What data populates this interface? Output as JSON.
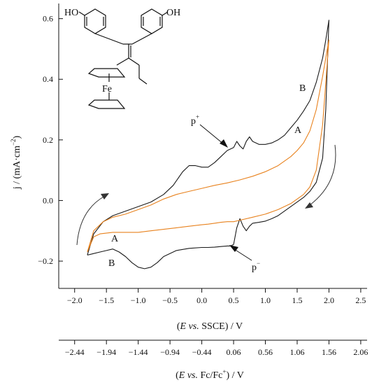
{
  "chart_data": {
    "type": "line",
    "title": "",
    "ylabel_parts": [
      "j / (mA·cm",
      "−2",
      ")"
    ],
    "xlabel_parts": [
      "(",
      "E",
      " ",
      "vs.",
      " SSCE) / V"
    ],
    "x2label_parts": [
      "(",
      "E",
      " ",
      "vs.",
      " Fc/Fc",
      "+",
      ") / V"
    ],
    "xlim": [
      -2.25,
      2.6
    ],
    "ylim": [
      -0.29,
      0.65
    ],
    "x_ticks": [
      -2.0,
      -1.5,
      -1.0,
      -0.5,
      0.0,
      0.5,
      1.0,
      1.5,
      2.0,
      2.5
    ],
    "x_tick_labels": [
      "−2.0",
      "−1.5",
      "−1.0",
      "−0.5",
      "0.0",
      "0.5",
      "1.0",
      "1.5",
      "2.0",
      "2.5"
    ],
    "y_ticks": [
      -0.2,
      0.0,
      0.2,
      0.4,
      0.6
    ],
    "y_tick_labels": [
      "−0.2",
      "0.0",
      "0.2",
      "0.4",
      "0.6"
    ],
    "x2_ticks": [
      -2.44,
      -1.94,
      -1.44,
      -0.94,
      -0.44,
      0.06,
      0.56,
      1.06,
      1.56,
      2.06
    ],
    "x2_tick_labels": [
      "−2.44",
      "−1.94",
      "−1.44",
      "−0.94",
      "−0.44",
      "0.06",
      "0.56",
      "1.06",
      "1.56",
      "2.06"
    ],
    "x2_offset": -0.44,
    "grid": false,
    "series": [
      {
        "name": "B",
        "color": "#1a1a1a",
        "x": [
          -1.8,
          -1.7,
          -1.55,
          -1.4,
          -1.2,
          -1.0,
          -0.8,
          -0.6,
          -0.45,
          -0.3,
          -0.2,
          -0.1,
          0.0,
          0.1,
          0.2,
          0.3,
          0.4,
          0.5,
          0.55,
          0.6,
          0.65,
          0.7,
          0.75,
          0.8,
          0.9,
          1.0,
          1.1,
          1.2,
          1.3,
          1.4,
          1.5,
          1.6,
          1.7,
          1.8,
          1.9,
          1.95,
          2.0,
          2.0,
          1.95,
          1.9,
          1.8,
          1.7,
          1.6,
          1.5,
          1.4,
          1.3,
          1.2,
          1.1,
          1.0,
          0.9,
          0.8,
          0.75,
          0.7,
          0.65,
          0.6,
          0.55,
          0.5,
          0.45,
          0.4,
          0.3,
          0.2,
          0.1,
          0.0,
          -0.2,
          -0.4,
          -0.6,
          -0.7,
          -0.8,
          -0.9,
          -1.0,
          -1.1,
          -1.2,
          -1.3,
          -1.4,
          -1.5,
          -1.6,
          -1.7,
          -1.8
        ],
        "y": [
          -0.18,
          -0.11,
          -0.07,
          -0.05,
          -0.035,
          -0.02,
          -0.005,
          0.02,
          0.05,
          0.095,
          0.115,
          0.115,
          0.11,
          0.11,
          0.125,
          0.145,
          0.165,
          0.175,
          0.195,
          0.18,
          0.17,
          0.195,
          0.21,
          0.195,
          0.185,
          0.185,
          0.19,
          0.2,
          0.215,
          0.24,
          0.265,
          0.295,
          0.33,
          0.39,
          0.47,
          0.53,
          0.595,
          0.595,
          0.3,
          0.14,
          0.06,
          0.03,
          0.01,
          -0.005,
          -0.02,
          -0.035,
          -0.05,
          -0.06,
          -0.068,
          -0.072,
          -0.075,
          -0.085,
          -0.1,
          -0.085,
          -0.06,
          -0.09,
          -0.145,
          -0.15,
          -0.15,
          -0.152,
          -0.154,
          -0.155,
          -0.155,
          -0.158,
          -0.165,
          -0.185,
          -0.205,
          -0.22,
          -0.225,
          -0.22,
          -0.205,
          -0.185,
          -0.17,
          -0.16,
          -0.165,
          -0.17,
          -0.175,
          -0.18
        ]
      },
      {
        "name": "A",
        "color": "#e8821e",
        "x": [
          -1.8,
          -1.7,
          -1.55,
          -1.4,
          -1.2,
          -1.0,
          -0.8,
          -0.6,
          -0.4,
          -0.2,
          0.0,
          0.2,
          0.4,
          0.6,
          0.8,
          1.0,
          1.2,
          1.4,
          1.5,
          1.6,
          1.7,
          1.8,
          1.9,
          2.0,
          2.0,
          1.9,
          1.8,
          1.7,
          1.6,
          1.5,
          1.4,
          1.2,
          1.0,
          0.8,
          0.6,
          0.5,
          0.4,
          0.3,
          0.2,
          0.1,
          0.0,
          -0.2,
          -0.4,
          -0.6,
          -0.8,
          -1.0,
          -1.2,
          -1.4,
          -1.6,
          -1.7,
          -1.8
        ],
        "y": [
          -0.17,
          -0.1,
          -0.07,
          -0.055,
          -0.045,
          -0.03,
          -0.015,
          0.005,
          0.02,
          0.03,
          0.04,
          0.05,
          0.058,
          0.068,
          0.08,
          0.095,
          0.115,
          0.145,
          0.165,
          0.19,
          0.23,
          0.3,
          0.41,
          0.53,
          0.53,
          0.25,
          0.1,
          0.045,
          0.02,
          0.005,
          -0.01,
          -0.03,
          -0.045,
          -0.055,
          -0.065,
          -0.07,
          -0.07,
          -0.072,
          -0.075,
          -0.078,
          -0.08,
          -0.085,
          -0.09,
          -0.095,
          -0.1,
          -0.105,
          -0.105,
          -0.105,
          -0.11,
          -0.12,
          -0.17
        ]
      }
    ],
    "annotations": {
      "B_top": "B",
      "A_top": "A",
      "A_bottom": "A",
      "B_bottom": "B",
      "p_plus_base": "p",
      "p_plus_sup": "+",
      "p_minus_base": "p",
      "p_minus_sup": "−"
    },
    "molecule": {
      "ho_left": "HO",
      "oh_right": "OH",
      "fe": "Fe"
    }
  }
}
